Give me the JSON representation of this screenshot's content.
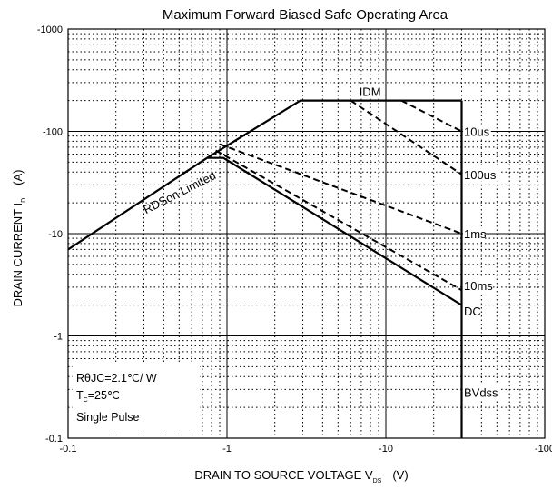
{
  "chart_data": {
    "type": "line",
    "title": "Maximum Forward Biased Safe Operating Area",
    "xlabel": {
      "main": "DRAIN TO SOURCE VOLTAGE   V",
      "sub": "DS",
      "unit": "(V)"
    },
    "ylabel": {
      "main": "DRAIN CURRENT   I",
      "sub": "D",
      "unit": "(A)"
    },
    "x_scale": "log",
    "y_scale": "log",
    "xlim": [
      0.1,
      100
    ],
    "ylim": [
      0.1,
      1000
    ],
    "x_ticks": [
      {
        "value": 0.1,
        "label": "-0.1"
      },
      {
        "value": 1,
        "label": "-1"
      },
      {
        "value": 10,
        "label": "-10"
      },
      {
        "value": 100,
        "label": "-100"
      }
    ],
    "y_ticks": [
      {
        "value": 0.1,
        "label": "-0.1"
      },
      {
        "value": 1,
        "label": "-1"
      },
      {
        "value": 10,
        "label": "-10"
      },
      {
        "value": 100,
        "label": "-100"
      },
      {
        "value": 1000,
        "label": "-1000"
      }
    ],
    "grid": true,
    "series": [
      {
        "name": "RDSon Limited",
        "style": "solid",
        "points": [
          [
            0.1,
            7
          ],
          [
            0.75,
            55
          ]
        ]
      },
      {
        "name": "IDM",
        "style": "solid",
        "points": [
          [
            0.75,
            55
          ],
          [
            2.9,
            200
          ],
          [
            30,
            200
          ]
        ]
      },
      {
        "name": "10us",
        "style": "dashed",
        "points": [
          [
            12.5,
            200
          ],
          [
            30,
            100
          ]
        ]
      },
      {
        "name": "100us",
        "style": "dashed",
        "points": [
          [
            6,
            200
          ],
          [
            30,
            38
          ]
        ]
      },
      {
        "name": "1ms",
        "style": "dashed",
        "points": [
          [
            0.9,
            75
          ],
          [
            30,
            10
          ]
        ]
      },
      {
        "name": "10ms",
        "style": "dashed",
        "points": [
          [
            0.85,
            65
          ],
          [
            30,
            2.8
          ]
        ]
      },
      {
        "name": "DC",
        "style": "solid",
        "points": [
          [
            0.75,
            55
          ],
          [
            0.95,
            55
          ],
          [
            30,
            2
          ]
        ]
      },
      {
        "name": "BVdss",
        "style": "solid",
        "points": [
          [
            30,
            200
          ],
          [
            30,
            0.1
          ]
        ]
      }
    ],
    "curve_labels": [
      {
        "text": "IDM",
        "x": 6.8,
        "y": 245
      },
      {
        "text": "10us",
        "x": 31,
        "y": 100
      },
      {
        "text": "100us",
        "x": 31,
        "y": 38
      },
      {
        "text": "1ms",
        "x": 31,
        "y": 10
      },
      {
        "text": "10ms",
        "x": 31,
        "y": 3.1
      },
      {
        "text": "DC",
        "x": 31,
        "y": 1.75
      },
      {
        "text": "BVdss",
        "x": 31,
        "y": 0.28
      },
      {
        "text": "RDSon Limited",
        "x": 0.3,
        "y": 17,
        "rotate": -27
      }
    ],
    "notes": [
      {
        "text": "RθJC=2.1℃/ W"
      },
      {
        "main": "T",
        "sub": "C",
        "rest": "=25℃"
      },
      {
        "text": "Single Pulse"
      }
    ]
  }
}
